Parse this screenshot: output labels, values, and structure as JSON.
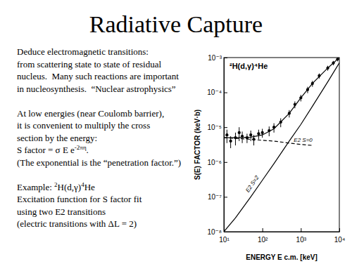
{
  "title": "Radiative Capture",
  "paragraphs": [
    [
      [
        {
          "t": "Deduce electromagnetic transitions:"
        }
      ],
      [
        {
          "t": "from scattering state to state of residual"
        }
      ],
      [
        {
          "t": "nucleus.  Many such reactions are important"
        }
      ],
      [
        {
          "t": "in nucleosynthesis.  “Nuclear astrophysics”"
        }
      ]
    ],
    [
      [
        {
          "t": "At low energies (near Coulomb barrier),"
        }
      ],
      [
        {
          "t": "it is convenient to multiply the cross"
        }
      ],
      [
        {
          "t": "section by the energy:"
        }
      ],
      [
        {
          "t": "S factor = σ E e"
        },
        {
          "t": "-2πη",
          "sup": true
        },
        {
          "t": "."
        }
      ],
      [
        {
          "t": "(The exponential is the “penetration factor.”)"
        }
      ]
    ],
    [
      [
        {
          "t": "Example: "
        },
        {
          "t": "2",
          "sup": true
        },
        {
          "t": "H(d,γ)"
        },
        {
          "t": "4",
          "sup": true
        },
        {
          "t": "He"
        }
      ],
      [
        {
          "t": "Excitation function for S factor fit"
        }
      ],
      [
        {
          "t": "using two E2 transitions"
        }
      ],
      [
        {
          "t": "(electric transitions with ΔL = 2)"
        }
      ]
    ]
  ],
  "chart_data": {
    "type": "scatter",
    "title": "²H(d,γ)⁴He",
    "x_label": "ENERGY E c.m. [keV]",
    "y_label": "S(E) FACTOR (keV·b)",
    "log": true,
    "xlim": [
      10,
      10000
    ],
    "ylim": [
      1e-08,
      0.001
    ],
    "xticks": [
      {
        "value": 10,
        "label": "10¹"
      },
      {
        "value": 100,
        "label": "10²"
      },
      {
        "value": 1000,
        "label": "10³"
      },
      {
        "value": 10000,
        "label": "10⁴"
      }
    ],
    "yticks": [
      {
        "value": 1e-08,
        "label": "10⁻⁸"
      },
      {
        "value": 1e-07,
        "label": "10⁻⁷"
      },
      {
        "value": 1e-06,
        "label": "10⁻⁶"
      },
      {
        "value": 1e-05,
        "label": "10⁻⁵"
      },
      {
        "value": 0.0001,
        "label": "10⁻⁴"
      },
      {
        "value": 0.001,
        "label": "10⁻³"
      }
    ],
    "color": "#000000",
    "marker": "circle",
    "x": [
      12,
      15,
      20,
      25,
      30,
      40,
      50,
      60,
      80,
      100,
      150,
      200,
      300,
      500,
      700,
      1000,
      1500,
      2000,
      3000,
      5000,
      7000,
      9000
    ],
    "values": [
      6e-06,
      4e-06,
      5e-06,
      7e-06,
      5.5e-06,
      5e-06,
      6e-06,
      4.5e-06,
      6.5e-06,
      7e-06,
      8e-06,
      1e-05,
      1.4e-05,
      2.5e-05,
      4.5e-05,
      7e-05,
      0.00012,
      0.00018,
      0.0003,
      0.0005,
      0.0007,
      0.0009
    ],
    "error": [
      2.5e-06,
      1.5e-06,
      2e-06,
      3e-06,
      2e-06,
      1.5e-06,
      2e-06,
      1.5e-06,
      2e-06,
      2e-06,
      2.5e-06,
      3e-06,
      4e-06,
      6e-06,
      1e-05,
      1.5e-05,
      2.5e-05,
      3.5e-05,
      5e-05,
      8e-05,
      0.0001,
      0.00012
    ],
    "series": [
      {
        "type": "line",
        "line_style": "solid",
        "color": "#000000",
        "x": [
          10,
          20,
          50,
          100,
          200,
          500,
          1000,
          2000,
          5000,
          10000
        ],
        "values": [
          5e-06,
          5e-06,
          5.2e-06,
          6e-06,
          9e-06,
          2.5e-05,
          7e-05,
          0.00018,
          0.0005,
          0.001
        ]
      },
      {
        "name": "E2 S=0",
        "type": "line",
        "line_style": "dashed",
        "color": "#000000",
        "x": [
          10,
          20,
          50,
          100,
          200,
          500,
          1000,
          2000
        ],
        "values": [
          5e-06,
          4.8e-06,
          4.5e-06,
          4.2e-06,
          4e-06,
          3.5e-06,
          3.2e-06,
          3e-06
        ]
      },
      {
        "name": "E2 S=2",
        "type": "line",
        "line_style": "solid",
        "color": "#000000",
        "x": [
          10,
          20,
          50,
          100,
          200,
          500,
          1000,
          2000,
          5000,
          10000
        ],
        "values": [
          1e-08,
          2.5e-08,
          1e-07,
          3e-07,
          9e-07,
          4e-06,
          1.2e-05,
          4e-05,
          0.0002,
          0.0007
        ]
      }
    ]
  }
}
